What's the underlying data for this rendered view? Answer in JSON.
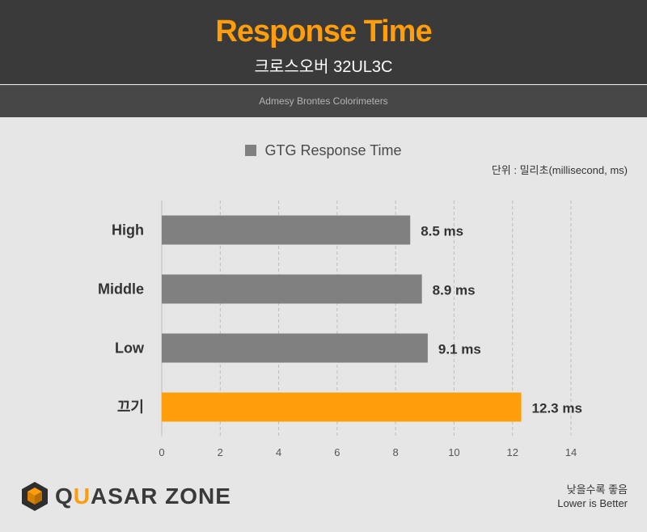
{
  "header": {
    "title": "Response Time",
    "subtitle": "크로스오버 32UL3C",
    "source": "Admesy Brontes Colorimeters"
  },
  "legend": {
    "label": "GTG Response Time"
  },
  "unit_note": "단위 : 밀리초(millisecond, ms)",
  "footer": {
    "note_ko": "낮을수록 좋음",
    "note_en": "Lower is Better",
    "logo_prefix": "Q",
    "logo_accent": "U",
    "logo_rest": "ASAR ZONE"
  },
  "colors": {
    "default_bar": "#808080",
    "highlight_bar": "#ff9e0a",
    "title": "#ff9e0a"
  },
  "chart_data": {
    "type": "bar",
    "orientation": "horizontal",
    "categories": [
      "High",
      "Middle",
      "Low",
      "끄기"
    ],
    "series": [
      {
        "name": "GTG Response Time",
        "values": [
          8.5,
          8.9,
          9.1,
          12.3
        ],
        "labels": [
          "8.5 ms",
          "8.9 ms",
          "9.1 ms",
          "12.3 ms"
        ]
      }
    ],
    "highlight_index": 3,
    "xlim": [
      0,
      14
    ],
    "xticks": [
      0,
      2,
      4,
      6,
      8,
      10,
      12,
      14
    ],
    "grid": "vertical-dashed",
    "legend_position": "top"
  }
}
